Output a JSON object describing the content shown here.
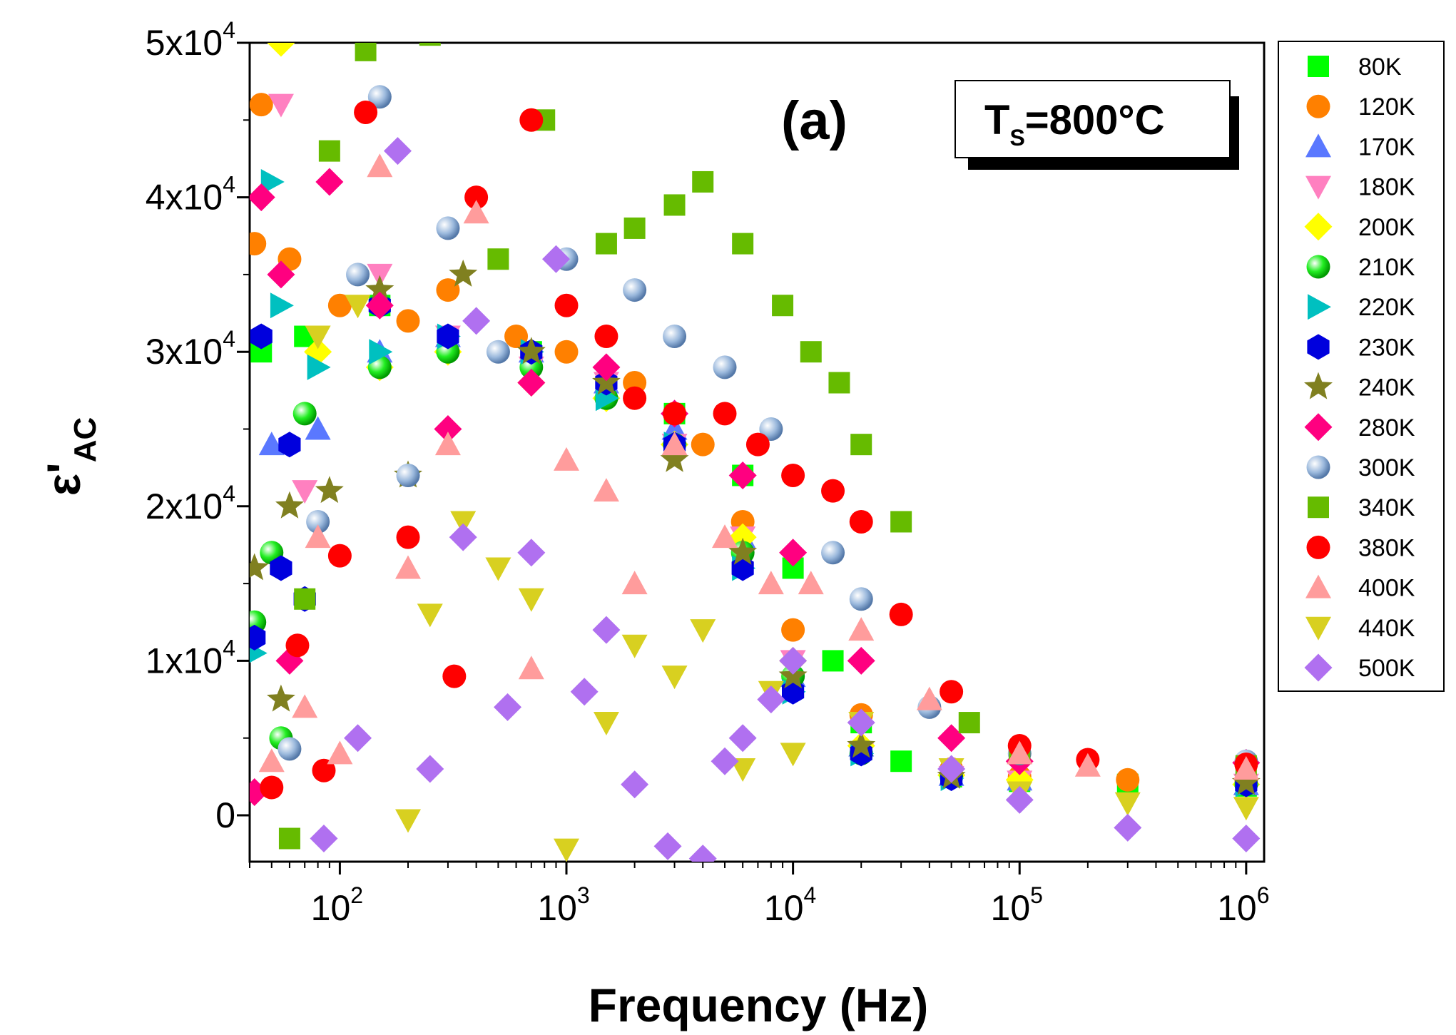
{
  "chart_data": {
    "type": "scatter",
    "title": "",
    "panel_label": "(a)",
    "annotation": {
      "main": "T",
      "sub": "S",
      "rest": "=800°C"
    },
    "xlabel": "Frequency (Hz)",
    "ylabel": {
      "main": "ε'",
      "sub": "AC"
    },
    "xscale": "log",
    "xlim": [
      40,
      1200000
    ],
    "ylim": [
      -3000,
      50000
    ],
    "x_ticks": [
      {
        "base": "10",
        "exp": "2",
        "value": 100
      },
      {
        "base": "10",
        "exp": "3",
        "value": 1000
      },
      {
        "base": "10",
        "exp": "4",
        "value": 10000
      },
      {
        "base": "10",
        "exp": "5",
        "value": 100000
      },
      {
        "base": "10",
        "exp": "6",
        "value": 1000000
      }
    ],
    "y_ticks": [
      {
        "value": 0,
        "text": "0",
        "exp": ""
      },
      {
        "value": 10000,
        "text": "1x10",
        "exp": "4"
      },
      {
        "value": 20000,
        "text": "2x10",
        "exp": "4"
      },
      {
        "value": 30000,
        "text": "3x10",
        "exp": "4"
      },
      {
        "value": 40000,
        "text": "4x10",
        "exp": "4"
      },
      {
        "value": 50000,
        "text": "5x10",
        "exp": "4"
      }
    ],
    "legend_position": "right-outside",
    "series": [
      {
        "name": "80K",
        "color": "#00ff00",
        "marker": "square",
        "x": [
          45,
          70,
          150,
          300,
          700,
          1500,
          3000,
          6000,
          10000,
          15000,
          20000,
          30000,
          50000,
          100000,
          300000,
          1000000
        ],
        "y": [
          30000,
          31000,
          33000,
          31000,
          30000,
          28000,
          26000,
          22000,
          16000,
          10000,
          6000,
          3500,
          2500,
          2200,
          2000,
          1900
        ]
      },
      {
        "name": "120K",
        "color": "#ff8000",
        "marker": "circle",
        "x": [
          42,
          45,
          60,
          100,
          200,
          300,
          600,
          1000,
          2000,
          4000,
          6000,
          10000,
          20000,
          50000,
          100000,
          300000,
          1000000
        ],
        "y": [
          37000,
          46000,
          36000,
          33000,
          32000,
          34000,
          31000,
          30000,
          28000,
          24000,
          19000,
          12000,
          6500,
          3000,
          2500,
          2300,
          2100
        ]
      },
      {
        "name": "170K",
        "color": "#5a78ff",
        "marker": "triangle-up",
        "x": [
          50,
          80,
          150,
          300,
          700,
          1500,
          3000,
          6000,
          10000,
          20000,
          50000,
          100000,
          1000000
        ],
        "y": [
          24000,
          25000,
          30000,
          31000,
          30000,
          28000,
          25000,
          18000,
          9000,
          4500,
          2600,
          2300,
          2000
        ]
      },
      {
        "name": "180K",
        "color": "#ff80c0",
        "marker": "triangle-down",
        "x": [
          55,
          70,
          150,
          300,
          700,
          1500,
          3000,
          6000,
          10000,
          20000,
          50000,
          100000,
          1000000
        ],
        "y": [
          46000,
          21000,
          35000,
          31000,
          29000,
          28000,
          24000,
          18000,
          10000,
          4000,
          2500,
          2200,
          2000
        ]
      },
      {
        "name": "200K",
        "color": "#ffff00",
        "marker": "diamond",
        "x": [
          55,
          80,
          150,
          300,
          700,
          1500,
          3000,
          6000,
          10000,
          20000,
          50000,
          100000,
          1000000
        ],
        "y": [
          50000,
          30000,
          29000,
          30000,
          28000,
          27000,
          24000,
          18000,
          10000,
          4500,
          2600,
          2300,
          2000
        ]
      },
      {
        "name": "210K",
        "color": "#00dd00",
        "marker": "sphere",
        "x": [
          42,
          50,
          55,
          70,
          150,
          300,
          700,
          1500,
          3000,
          6000,
          10000,
          20000,
          50000,
          1000000
        ],
        "y": [
          12500,
          17000,
          5000,
          26000,
          29000,
          30000,
          29000,
          27000,
          24000,
          17000,
          9000,
          4000,
          2500,
          2000
        ]
      },
      {
        "name": "220K",
        "color": "#00c0c0",
        "marker": "triangle-right",
        "x": [
          42,
          50,
          55,
          80,
          150,
          300,
          700,
          1500,
          3000,
          6000,
          10000,
          20000,
          50000,
          1000000
        ],
        "y": [
          10500,
          41000,
          33000,
          29000,
          30000,
          31000,
          30000,
          27000,
          24000,
          16000,
          8000,
          4000,
          2400,
          2000
        ]
      },
      {
        "name": "230K",
        "color": "#0000dd",
        "marker": "hexagon",
        "x": [
          42,
          45,
          55,
          60,
          70,
          150,
          300,
          700,
          1500,
          3000,
          6000,
          10000,
          20000,
          50000,
          1000000
        ],
        "y": [
          11500,
          31000,
          16000,
          24000,
          14000,
          33000,
          31000,
          30000,
          28000,
          24000,
          16000,
          8000,
          4000,
          2400,
          2000
        ]
      },
      {
        "name": "240K",
        "color": "#808020",
        "marker": "star",
        "x": [
          42,
          55,
          60,
          90,
          150,
          200,
          350,
          700,
          1500,
          3000,
          6000,
          10000,
          20000,
          50000,
          1000000
        ],
        "y": [
          16000,
          7500,
          20000,
          21000,
          34000,
          22000,
          35000,
          30000,
          28000,
          23000,
          17000,
          9000,
          4500,
          2500,
          2100
        ]
      },
      {
        "name": "280K",
        "color": "#ff0080",
        "marker": "diamond",
        "x": [
          42,
          45,
          55,
          60,
          90,
          150,
          300,
          700,
          1500,
          3000,
          6000,
          10000,
          20000,
          50000,
          100000,
          1000000
        ],
        "y": [
          1500,
          40000,
          35000,
          10000,
          41000,
          33000,
          25000,
          28000,
          29000,
          26000,
          22000,
          17000,
          10000,
          5000,
          3500,
          3400
        ]
      },
      {
        "name": "300K",
        "color": "#80a8d0",
        "marker": "sphere",
        "x": [
          60,
          80,
          120,
          150,
          200,
          300,
          500,
          1000,
          2000,
          3000,
          5000,
          8000,
          15000,
          20000,
          40000,
          100000,
          1000000
        ],
        "y": [
          4300,
          19000,
          35000,
          46500,
          22000,
          38000,
          30000,
          36000,
          34000,
          31000,
          29000,
          25000,
          17000,
          14000,
          7000,
          4000,
          3500
        ]
      },
      {
        "name": "340K",
        "color": "#66bb00",
        "marker": "square",
        "x": [
          60,
          70,
          90,
          130,
          250,
          500,
          800,
          1500,
          2000,
          3000,
          4000,
          6000,
          9000,
          12000,
          16000,
          20000,
          30000,
          60000,
          100000,
          1000000
        ],
        "y": [
          -1500,
          14000,
          43000,
          49500,
          50500,
          36000,
          45000,
          37000,
          38000,
          39500,
          41000,
          37000,
          33000,
          30000,
          28000,
          24000,
          19000,
          6000,
          4000,
          3200
        ]
      },
      {
        "name": "380K",
        "color": "#ff0000",
        "marker": "circle",
        "x": [
          50,
          65,
          85,
          100,
          130,
          200,
          320,
          400,
          700,
          1000,
          1500,
          2000,
          3000,
          5000,
          7000,
          10000,
          15000,
          20000,
          30000,
          50000,
          100000,
          200000,
          1000000
        ],
        "y": [
          1800,
          11000,
          2900,
          16800,
          45500,
          18000,
          9000,
          40000,
          45000,
          33000,
          31000,
          27000,
          26000,
          26000,
          24000,
          22000,
          21000,
          19000,
          13000,
          8000,
          4500,
          3600,
          3300
        ]
      },
      {
        "name": "400K",
        "color": "#ff9c9c",
        "marker": "triangle-up",
        "x": [
          50,
          70,
          80,
          100,
          150,
          200,
          300,
          400,
          700,
          1000,
          1500,
          2000,
          3000,
          5000,
          8000,
          12000,
          20000,
          40000,
          100000,
          200000,
          1000000
        ],
        "y": [
          3500,
          7000,
          18000,
          4000,
          42000,
          16000,
          24000,
          39000,
          9500,
          23000,
          21000,
          15000,
          24000,
          18000,
          15000,
          15000,
          12000,
          7500,
          4000,
          3200,
          3000
        ]
      },
      {
        "name": "440K",
        "color": "#d8d020",
        "marker": "triangle-down",
        "x": [
          80,
          120,
          200,
          250,
          350,
          500,
          700,
          1000,
          1500,
          2000,
          3000,
          4000,
          6000,
          8000,
          10000,
          20000,
          50000,
          100000,
          300000,
          1000000
        ],
        "y": [
          31000,
          33000,
          -300,
          13000,
          19000,
          16000,
          14000,
          -2200,
          6000,
          11000,
          9000,
          12000,
          3000,
          8000,
          4000,
          6000,
          3000,
          1500,
          800,
          500
        ]
      },
      {
        "name": "500K",
        "color": "#b070f0",
        "marker": "diamond",
        "x": [
          85,
          120,
          180,
          250,
          350,
          400,
          550,
          700,
          900,
          1200,
          1500,
          2000,
          2800,
          4000,
          5000,
          6000,
          8000,
          10000,
          20000,
          50000,
          100000,
          300000,
          1000000
        ],
        "y": [
          -1500,
          5000,
          43000,
          3000,
          18000,
          32000,
          7000,
          17000,
          36000,
          8000,
          12000,
          2000,
          -2000,
          -2800,
          3500,
          5000,
          7500,
          10000,
          6000,
          3000,
          1000,
          -800,
          -1500
        ]
      }
    ]
  }
}
